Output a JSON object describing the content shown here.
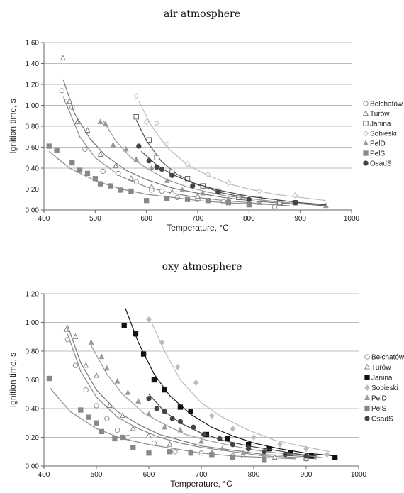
{
  "chart_data": [
    {
      "type": "scatter",
      "title": "air atmosphere",
      "xlabel": "Temperature, °C",
      "ylabel": "Ignition time, s",
      "xlim": [
        400,
        1000
      ],
      "ylim": [
        0,
        1.6
      ],
      "xticks": [
        "400",
        "500",
        "600",
        "700",
        "800",
        "900",
        "1000"
      ],
      "yticks": [
        "0,00",
        "0,20",
        "0,40",
        "0,60",
        "0,80",
        "1,00",
        "1,20",
        "1,40",
        "1,60"
      ],
      "grid": "horizontal",
      "legend_position": "right",
      "series": [
        {
          "name": "Bełchatów",
          "marker": "circle-open",
          "color": "#888888",
          "x": [
            435,
            445,
            455,
            480,
            515,
            545,
            580,
            610,
            630,
            660,
            700,
            750,
            800,
            850
          ],
          "y": [
            1.14,
            1.04,
            0.98,
            0.58,
            0.37,
            0.35,
            0.27,
            0.19,
            0.18,
            0.12,
            0.1,
            0.08,
            0.06,
            0.03
          ],
          "fit": {
            "x": [
              438,
              470,
              500,
              550,
              600,
              650,
              700,
              750,
              800,
              850,
              880
            ],
            "y": [
              1.08,
              0.7,
              0.5,
              0.32,
              0.22,
              0.16,
              0.12,
              0.09,
              0.07,
              0.05,
              0.04
            ]
          }
        },
        {
          "name": "Turów",
          "marker": "triangle-open",
          "color": "#777777",
          "x": [
            437,
            450,
            465,
            485,
            510,
            540,
            570,
            610,
            650,
            700,
            760,
            820
          ],
          "y": [
            1.45,
            1.04,
            0.84,
            0.76,
            0.53,
            0.42,
            0.3,
            0.22,
            0.17,
            0.13,
            0.1,
            0.07
          ],
          "fit": {
            "x": [
              438,
              460,
              490,
              520,
              560,
              600,
              650,
              700,
              750,
              800,
              850,
              880
            ],
            "y": [
              1.24,
              0.92,
              0.68,
              0.52,
              0.38,
              0.29,
              0.21,
              0.16,
              0.12,
              0.09,
              0.07,
              0.06
            ]
          }
        },
        {
          "name": "Janina",
          "marker": "square-open",
          "color": "#555555",
          "x": [
            580,
            605,
            620,
            650,
            680,
            710,
            740,
            780,
            820,
            860,
            890
          ],
          "y": [
            0.89,
            0.67,
            0.5,
            0.36,
            0.3,
            0.23,
            0.18,
            0.12,
            0.1,
            0.07,
            0.07
          ],
          "fit": {
            "x": [
              580,
              600,
              630,
              660,
              700,
              750,
              800,
              850,
              900,
              950
            ],
            "y": [
              0.86,
              0.66,
              0.46,
              0.34,
              0.24,
              0.16,
              0.11,
              0.08,
              0.06,
              0.04
            ]
          }
        },
        {
          "name": "Sobieski",
          "marker": "diamond-open",
          "color": "#bbbbbb",
          "x": [
            580,
            600,
            620,
            640,
            680,
            720,
            760,
            820,
            890
          ],
          "y": [
            1.09,
            0.84,
            0.83,
            0.63,
            0.44,
            0.34,
            0.26,
            0.18,
            0.14
          ],
          "fit": {
            "x": [
              585,
              610,
              640,
              680,
              720,
              760,
              800,
              850,
              900,
              950
            ],
            "y": [
              1.04,
              0.8,
              0.6,
              0.43,
              0.33,
              0.25,
              0.2,
              0.15,
              0.12,
              0.09
            ]
          }
        },
        {
          "name": "PelD",
          "marker": "triangle-filled",
          "color": "#999999",
          "x": [
            510,
            520,
            535,
            560,
            580,
            610,
            640,
            670,
            710,
            760,
            820,
            950
          ],
          "y": [
            0.84,
            0.82,
            0.62,
            0.58,
            0.48,
            0.4,
            0.28,
            0.19,
            0.16,
            0.1,
            0.07,
            0.04
          ],
          "fit": {
            "x": [
              515,
              540,
              570,
              600,
              640,
              680,
              720,
              760,
              800,
              850,
              900,
              950
            ],
            "y": [
              0.86,
              0.66,
              0.5,
              0.4,
              0.29,
              0.22,
              0.17,
              0.13,
              0.11,
              0.08,
              0.06,
              0.05
            ]
          }
        },
        {
          "name": "PelS",
          "marker": "square-filled",
          "color": "#888888",
          "x": [
            410,
            425,
            455,
            470,
            485,
            500,
            510,
            530,
            550,
            570,
            600,
            640,
            680,
            720,
            760,
            800
          ],
          "y": [
            0.61,
            0.57,
            0.45,
            0.38,
            0.35,
            0.3,
            0.25,
            0.23,
            0.19,
            0.18,
            0.09,
            0.11,
            0.1,
            0.09,
            0.07,
            0.05
          ],
          "fit": {
            "x": [
              410,
              450,
              500,
              550,
              600,
              650,
              700,
              750,
              800,
              850
            ],
            "y": [
              0.56,
              0.4,
              0.28,
              0.2,
              0.15,
              0.12,
              0.09,
              0.07,
              0.06,
              0.05
            ]
          }
        },
        {
          "name": "OsadS",
          "marker": "circle-filled",
          "color": "#444444",
          "x": [
            585,
            605,
            620,
            630,
            650,
            690,
            740,
            800,
            890
          ],
          "y": [
            0.61,
            0.47,
            0.41,
            0.39,
            0.33,
            0.23,
            0.17,
            0.1,
            0.07
          ],
          "fit": {
            "x": [
              590,
              620,
              650,
              690,
              740,
              800,
              850,
              900,
              950
            ],
            "y": [
              0.56,
              0.43,
              0.34,
              0.26,
              0.19,
              0.13,
              0.1,
              0.07,
              0.05
            ]
          }
        }
      ]
    },
    {
      "type": "scatter",
      "title": "oxy atmosphere",
      "xlabel": "Temperature, °C",
      "ylabel": "Ignition time, s",
      "xlim": [
        400,
        1000
      ],
      "ylim": [
        0,
        1.2
      ],
      "xticks": [
        "400",
        "500",
        "600",
        "700",
        "800",
        "900",
        "1000"
      ],
      "yticks": [
        "0,00",
        "0,20",
        "0,40",
        "0,60",
        "0,80",
        "1,00",
        "1,20"
      ],
      "grid": "horizontal",
      "legend_position": "right",
      "series": [
        {
          "name": "Bełchatów",
          "marker": "circle-open",
          "color": "#888888",
          "x": [
            445,
            460,
            480,
            500,
            520,
            540,
            560,
            610,
            650,
            700,
            760,
            820,
            900
          ],
          "y": [
            0.88,
            0.7,
            0.53,
            0.42,
            0.33,
            0.25,
            0.2,
            0.16,
            0.1,
            0.09,
            0.07,
            0.05,
            0.05
          ],
          "fit": {
            "x": [
              445,
              470,
              500,
              540,
              580,
              620,
              660,
              700,
              760,
              820,
              880,
              920
            ],
            "y": [
              0.92,
              0.66,
              0.48,
              0.34,
              0.26,
              0.2,
              0.16,
              0.13,
              0.1,
              0.07,
              0.06,
              0.05
            ]
          }
        },
        {
          "name": "Turów",
          "marker": "triangle-open",
          "color": "#777777",
          "x": [
            443,
            460,
            480,
            500,
            525,
            550,
            570,
            600,
            640,
            680,
            720,
            780,
            840,
            900
          ],
          "y": [
            0.95,
            0.9,
            0.7,
            0.63,
            0.42,
            0.35,
            0.26,
            0.21,
            0.15,
            0.1,
            0.09,
            0.07,
            0.06,
            0.05
          ],
          "fit": {
            "x": [
              445,
              470,
              500,
              540,
              580,
              620,
              660,
              700,
              760,
              820,
              880,
              920
            ],
            "y": [
              0.98,
              0.72,
              0.53,
              0.38,
              0.29,
              0.22,
              0.18,
              0.14,
              0.11,
              0.08,
              0.07,
              0.06
            ]
          }
        },
        {
          "name": "Janina",
          "marker": "square-filled",
          "color": "#111111",
          "x": [
            553,
            575,
            590,
            610,
            630,
            660,
            680,
            710,
            750,
            790,
            830,
            870,
            910,
            955
          ],
          "y": [
            0.98,
            0.92,
            0.78,
            0.6,
            0.53,
            0.41,
            0.38,
            0.22,
            0.19,
            0.15,
            0.12,
            0.09,
            0.07,
            0.06
          ],
          "fit": {
            "x": [
              555,
              580,
              610,
              640,
              680,
              720,
              760,
              800,
              850,
              900,
              955
            ],
            "y": [
              1.1,
              0.86,
              0.64,
              0.49,
              0.36,
              0.27,
              0.21,
              0.16,
              0.12,
              0.09,
              0.07
            ]
          }
        },
        {
          "name": "Sobieski",
          "marker": "diamond-filled",
          "color": "#bbbbbb",
          "x": [
            600,
            625,
            655,
            690,
            720,
            760,
            800,
            850,
            900,
            940
          ],
          "y": [
            1.02,
            0.86,
            0.69,
            0.58,
            0.35,
            0.26,
            0.2,
            0.15,
            0.12,
            0.08
          ],
          "fit": {
            "x": [
              605,
              630,
              660,
              700,
              740,
              790,
              840,
              890,
              945
            ],
            "y": [
              1.0,
              0.8,
              0.6,
              0.44,
              0.34,
              0.25,
              0.18,
              0.14,
              0.1
            ]
          }
        },
        {
          "name": "PelD",
          "marker": "triangle-filled",
          "color": "#999999",
          "x": [
            490,
            510,
            520,
            540,
            560,
            580,
            600,
            630,
            660,
            700,
            740,
            780,
            820
          ],
          "y": [
            0.86,
            0.76,
            0.68,
            0.59,
            0.51,
            0.45,
            0.36,
            0.27,
            0.25,
            0.17,
            0.12,
            0.09,
            0.07
          ],
          "fit": {
            "x": [
              490,
              520,
              550,
              590,
              630,
              670,
              710,
              760,
              820,
              880,
              930
            ],
            "y": [
              0.84,
              0.64,
              0.5,
              0.37,
              0.29,
              0.22,
              0.18,
              0.14,
              0.1,
              0.08,
              0.06
            ]
          }
        },
        {
          "name": "PelS",
          "marker": "square-filled",
          "color": "#888888",
          "x": [
            410,
            470,
            485,
            500,
            510,
            535,
            550,
            570,
            600,
            640,
            680,
            720,
            760,
            820
          ],
          "y": [
            0.61,
            0.39,
            0.34,
            0.3,
            0.24,
            0.19,
            0.2,
            0.13,
            0.09,
            0.1,
            0.09,
            0.08,
            0.06,
            0.04
          ],
          "fit": {
            "x": [
              412,
              450,
              500,
              550,
              600,
              650,
              700,
              760,
              820,
              880
            ],
            "y": [
              0.54,
              0.38,
              0.26,
              0.19,
              0.15,
              0.12,
              0.09,
              0.07,
              0.06,
              0.05
            ]
          }
        },
        {
          "name": "OsadS",
          "marker": "circle-filled",
          "color": "#444444",
          "x": [
            600,
            615,
            630,
            645,
            660,
            685,
            705,
            735,
            760,
            790,
            820,
            860,
            900
          ],
          "y": [
            0.47,
            0.4,
            0.38,
            0.33,
            0.31,
            0.27,
            0.22,
            0.19,
            0.15,
            0.12,
            0.1,
            0.08,
            0.07
          ],
          "fit": {
            "x": [
              600,
              630,
              660,
              700,
              740,
              790,
              840,
              890,
              920
            ],
            "y": [
              0.5,
              0.38,
              0.3,
              0.23,
              0.18,
              0.14,
              0.11,
              0.08,
              0.07
            ]
          }
        }
      ]
    }
  ]
}
